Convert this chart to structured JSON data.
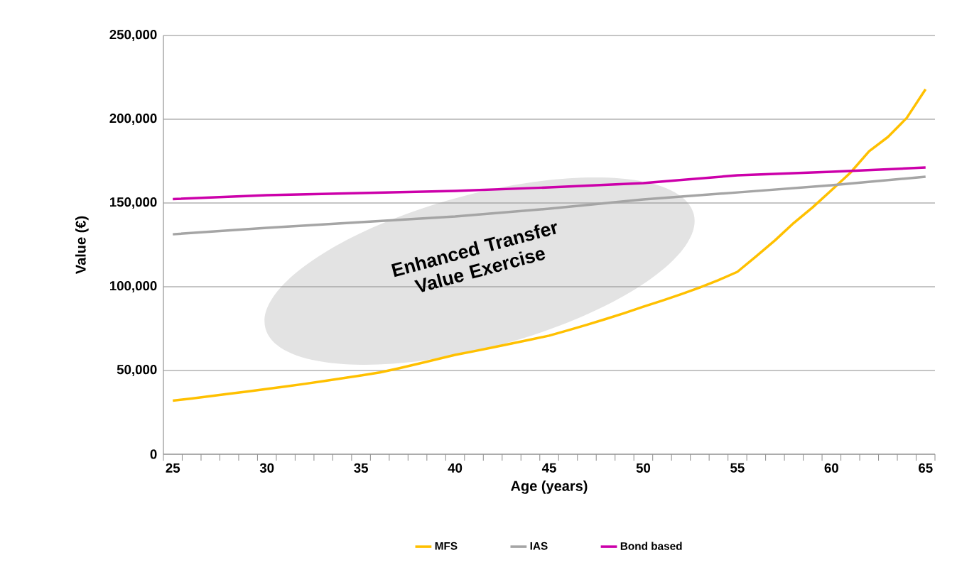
{
  "chart_data": {
    "type": "line",
    "xlabel": "Age (years)",
    "ylabel": "Value (€)",
    "xlim": [
      24.5,
      65.5
    ],
    "ylim": [
      0,
      250000
    ],
    "xticks": [
      25,
      30,
      35,
      40,
      45,
      50,
      55,
      60,
      65,
      {
        "value": 24.5,
        "label": null
      },
      {
        "value": 25.5,
        "label": null
      },
      {
        "value": 26.5,
        "label": null
      },
      {
        "value": 27.5,
        "label": null
      },
      {
        "value": 28.5,
        "label": null
      },
      {
        "value": 29.5,
        "label": null
      },
      {
        "value": 30.5,
        "label": null
      },
      {
        "value": 31.5,
        "label": null
      },
      {
        "value": 32.5,
        "label": null
      },
      {
        "value": 33.5,
        "label": null
      },
      {
        "value": 34.5,
        "label": null
      },
      {
        "value": 35.5,
        "label": null
      },
      {
        "value": 36.5,
        "label": null
      },
      {
        "value": 37.5,
        "label": null
      },
      {
        "value": 38.5,
        "label": null
      },
      {
        "value": 39.5,
        "label": null
      },
      {
        "value": 40.5,
        "label": null
      },
      {
        "value": 41.5,
        "label": null
      },
      {
        "value": 42.5,
        "label": null
      },
      {
        "value": 43.5,
        "label": null
      },
      {
        "value": 44.5,
        "label": null
      },
      {
        "value": 45.5,
        "label": null
      },
      {
        "value": 46.5,
        "label": null
      },
      {
        "value": 47.5,
        "label": null
      },
      {
        "value": 48.5,
        "label": null
      },
      {
        "value": 49.5,
        "label": null
      },
      {
        "value": 50.5,
        "label": null
      },
      {
        "value": 51.5,
        "label": null
      },
      {
        "value": 52.5,
        "label": null
      },
      {
        "value": 53.5,
        "label": null
      },
      {
        "value": 54.5,
        "label": null
      },
      {
        "value": 55.5,
        "label": null
      },
      {
        "value": 56.5,
        "label": null
      },
      {
        "value": 57.5,
        "label": null
      },
      {
        "value": 58.5,
        "label": null
      },
      {
        "value": 59.5,
        "label": null
      },
      {
        "value": 60.5,
        "label": null
      },
      {
        "value": 61.5,
        "label": null
      },
      {
        "value": 62.5,
        "label": null
      },
      {
        "value": 63.5,
        "label": null
      },
      {
        "value": 64.5,
        "label": null
      },
      {
        "value": 65.5,
        "label": null
      }
    ],
    "yticks": [
      {
        "value": 0,
        "label": "0"
      },
      {
        "value": 50000,
        "label": "50,000"
      },
      {
        "value": 100000,
        "label": "100,000"
      },
      {
        "value": 150000,
        "label": "150,000"
      },
      {
        "value": 200000,
        "label": "200,000"
      },
      {
        "value": 250000,
        "label": "250,000"
      }
    ],
    "grid": "y",
    "legend": "bottom",
    "marker": "none",
    "line_style": "solid",
    "series": [
      {
        "name": "MFS",
        "color": "#ffc000",
        "x": [
          25,
          26,
          27,
          28,
          29,
          30,
          31,
          32,
          33,
          34,
          35,
          36,
          37,
          38,
          39,
          40,
          41,
          42,
          43,
          44,
          45,
          46,
          47,
          48,
          49,
          50,
          51,
          52,
          53,
          54,
          55,
          56,
          57,
          58,
          59,
          60,
          61,
          62,
          63,
          64,
          65
        ],
        "values": [
          32000,
          33300,
          34700,
          36100,
          37500,
          39000,
          40500,
          42000,
          43600,
          45300,
          47000,
          48800,
          51300,
          53900,
          56600,
          59300,
          61500,
          63800,
          66100,
          68400,
          70800,
          74000,
          77300,
          80700,
          84300,
          88100,
          91700,
          95500,
          99500,
          104000,
          108900,
          118200,
          127700,
          138100,
          147400,
          157600,
          168000,
          180900,
          189400,
          200800,
          217900
        ]
      },
      {
        "name": "IAS",
        "color": "#a5a5a5",
        "x": [
          25,
          30,
          35,
          40,
          45,
          50,
          55,
          60,
          65
        ],
        "values": [
          131300,
          135200,
          138600,
          141900,
          146600,
          152100,
          156300,
          160600,
          165700
        ]
      },
      {
        "name": "Bond based",
        "color": "#cc00aa",
        "x": [
          25,
          30,
          35,
          40,
          45,
          50,
          55,
          60,
          65
        ],
        "values": [
          152300,
          154700,
          155900,
          157200,
          159300,
          161900,
          166500,
          168600,
          171200
        ]
      }
    ],
    "annotations": [
      "Enhanced Transfer Value Exercise"
    ]
  }
}
